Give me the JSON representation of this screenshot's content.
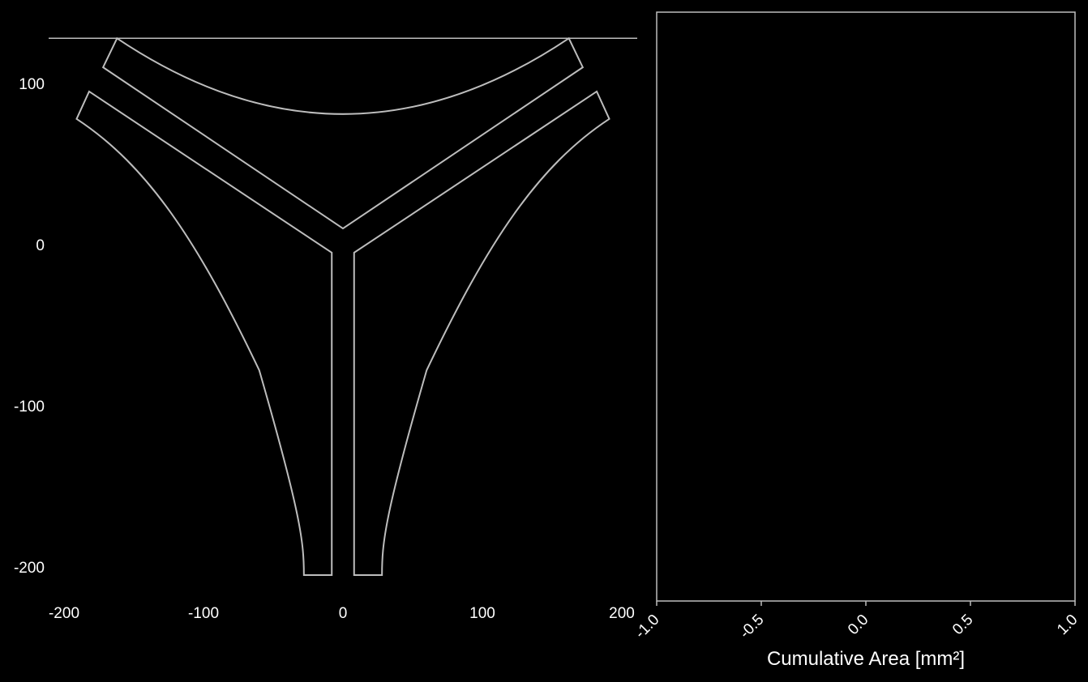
{
  "colors": {
    "background": "#000000",
    "stroke": "#bdbdbd",
    "text": "#ffffff"
  },
  "chart_data": [
    {
      "type": "line",
      "title": "",
      "xlabel": "",
      "ylabel": "",
      "xlim": [
        -210,
        210
      ],
      "ylim": [
        -222,
        133
      ],
      "grid": false,
      "xticks": [
        "-200",
        "-100",
        "0",
        "100",
        "200"
      ],
      "yticks": [
        "100",
        "0",
        "-100",
        "-200"
      ],
      "xtick_values": [
        -200,
        -100,
        0,
        100,
        200
      ],
      "ytick_values": [
        100,
        0,
        -100,
        -200
      ],
      "hline": {
        "y": 128
      },
      "series": [
        {
          "kind": "upper-channel",
          "points": [
            [
              -162,
              128
            ],
            [
              -172,
              110
            ],
            [
              0,
              10
            ],
            [
              172,
              110
            ],
            [
              162,
              128
            ],
            [
              0,
              81
            ]
          ]
        },
        {
          "kind": "left-outer-channel",
          "points": [
            [
              -182,
              95
            ],
            [
              -191,
              78
            ],
            [
              -140,
              49
            ],
            [
              -104,
              2
            ],
            [
              -60,
              -78
            ],
            [
              -30,
              -168
            ],
            [
              -28,
              -205
            ],
            [
              -8,
              -205
            ],
            [
              -8,
              -5
            ],
            [
              -182,
              95
            ]
          ]
        },
        {
          "kind": "right-outer-channel",
          "points": [
            [
              182,
              95
            ],
            [
              191,
              78
            ],
            [
              140,
              49
            ],
            [
              104,
              2
            ],
            [
              60,
              -78
            ],
            [
              30,
              -168
            ],
            [
              28,
              -205
            ],
            [
              8,
              -205
            ],
            [
              8,
              -5
            ],
            [
              182,
              95
            ]
          ]
        }
      ]
    },
    {
      "type": "scatter",
      "title": "",
      "xlabel": "Cumulative Area [mm²]",
      "ylabel": "",
      "xlim": [
        -1.0,
        1.0
      ],
      "xticks": [
        "-1.0",
        "-0.5",
        "0.0",
        "0.5",
        "1.0"
      ],
      "xtick_values": [
        -1.0,
        -0.5,
        0.0,
        0.5,
        1.0
      ],
      "yticks": [],
      "grid": false,
      "series": []
    }
  ]
}
